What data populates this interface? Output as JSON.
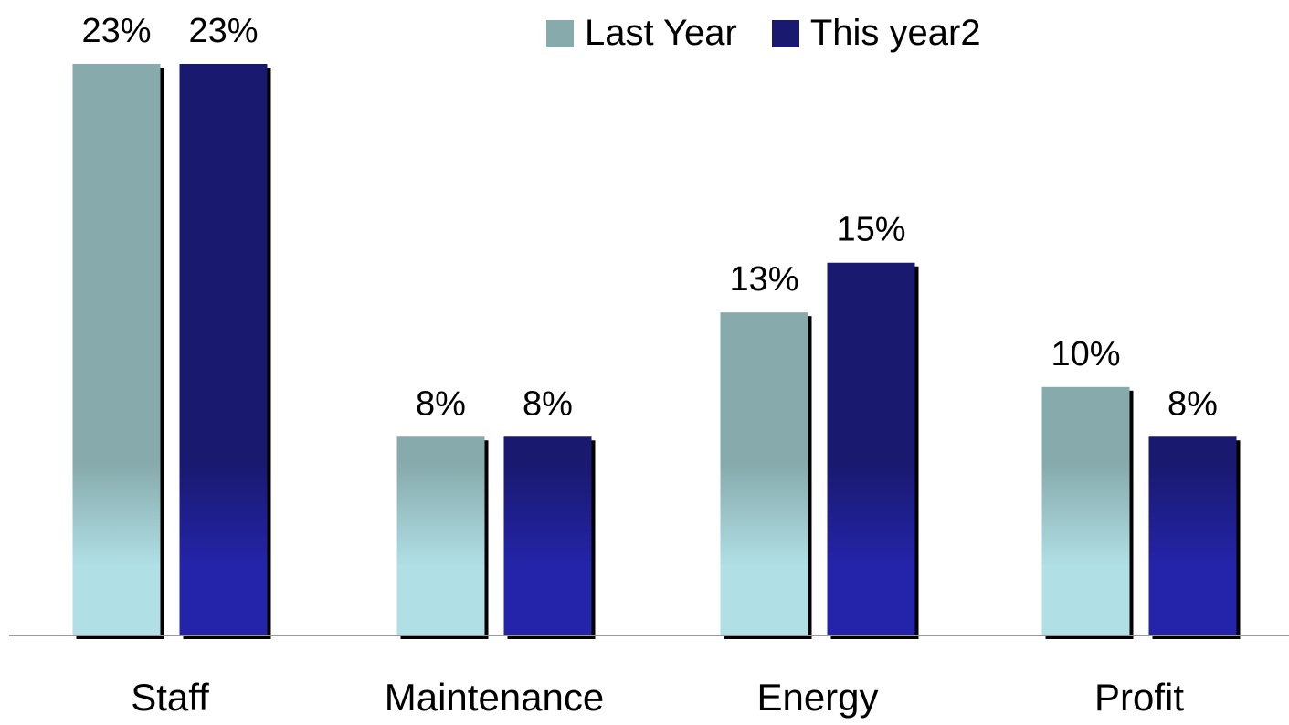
{
  "chart_data": {
    "type": "bar",
    "categories": [
      "Staff",
      "Maintenance",
      "Energy",
      "Profit"
    ],
    "series": [
      {
        "name": "Last Year",
        "values": [
          23,
          8,
          13,
          10
        ],
        "labels": [
          "23%",
          "8%",
          "13%",
          "10%"
        ],
        "color": "#87aaac",
        "light_color": "#b0e0e6"
      },
      {
        "name": "This year2",
        "values": [
          23,
          8,
          15,
          8
        ],
        "labels": [
          "23%",
          "8%",
          "15%",
          "8%"
        ],
        "color": "#191970",
        "light_color": "#2424aa"
      }
    ],
    "ylim": [
      0,
      23
    ],
    "grid": false,
    "legend_position": "top-right",
    "shadow_color": "#000000",
    "baseline_color": "#999999"
  }
}
